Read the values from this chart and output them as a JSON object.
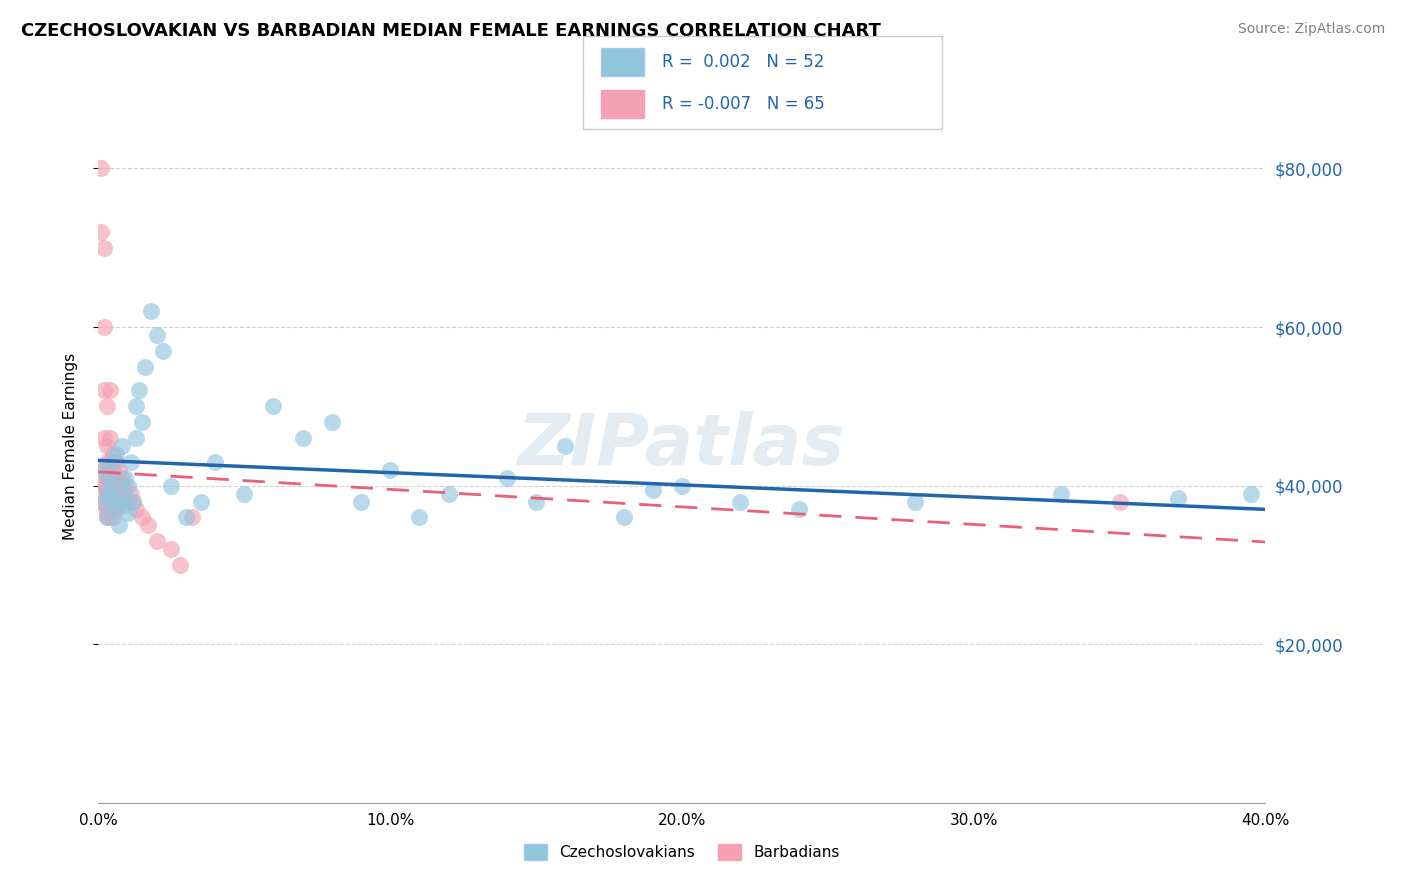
{
  "title": "CZECHOSLOVAKIAN VS BARBADIAN MEDIAN FEMALE EARNINGS CORRELATION CHART",
  "source": "Source: ZipAtlas.com",
  "ylabel": "Median Female Earnings",
  "xlim": [
    0.0,
    0.4
  ],
  "ylim": [
    0,
    90000
  ],
  "yticks": [
    20000,
    40000,
    60000,
    80000
  ],
  "ytick_labels": [
    "$20,000",
    "$40,000",
    "$60,000",
    "$80,000"
  ],
  "xticks": [
    0.0,
    0.1,
    0.2,
    0.3,
    0.4
  ],
  "xtick_labels": [
    "0.0%",
    "10.0%",
    "20.0%",
    "30.0%",
    "40.0%"
  ],
  "legend_labels": [
    "Czechoslovakians",
    "Barbadians"
  ],
  "r_czecho": 0.002,
  "n_czecho": 52,
  "r_barb": -0.007,
  "n_barb": 65,
  "blue_color": "#92c5de",
  "pink_color": "#f4a0b5",
  "blue_line_color": "#2166ac",
  "pink_line_color": "#e8607a",
  "watermark": "ZIPatlas",
  "czecho_x": [
    0.001,
    0.002,
    0.003,
    0.003,
    0.004,
    0.004,
    0.005,
    0.005,
    0.006,
    0.006,
    0.007,
    0.007,
    0.008,
    0.008,
    0.009,
    0.009,
    0.01,
    0.01,
    0.011,
    0.012,
    0.013,
    0.013,
    0.014,
    0.015,
    0.016,
    0.018,
    0.02,
    0.022,
    0.025,
    0.03,
    0.035,
    0.04,
    0.05,
    0.06,
    0.07,
    0.08,
    0.09,
    0.1,
    0.11,
    0.12,
    0.14,
    0.15,
    0.16,
    0.18,
    0.19,
    0.2,
    0.22,
    0.24,
    0.28,
    0.33,
    0.37,
    0.395
  ],
  "czecho_y": [
    42000,
    38000,
    39500,
    36000,
    41000,
    38500,
    43000,
    40000,
    44000,
    37000,
    38000,
    35000,
    45000,
    39000,
    41000,
    37500,
    40000,
    36500,
    43000,
    38000,
    50000,
    46000,
    52000,
    48000,
    55000,
    62000,
    59000,
    57000,
    40000,
    36000,
    38000,
    43000,
    39000,
    50000,
    46000,
    48000,
    38000,
    42000,
    36000,
    39000,
    41000,
    38000,
    45000,
    36000,
    39500,
    40000,
    38000,
    37000,
    38000,
    39000,
    38500,
    39000
  ],
  "barb_x": [
    0.001,
    0.001,
    0.001,
    0.001,
    0.002,
    0.002,
    0.002,
    0.002,
    0.002,
    0.002,
    0.003,
    0.003,
    0.003,
    0.003,
    0.003,
    0.003,
    0.003,
    0.003,
    0.003,
    0.003,
    0.003,
    0.004,
    0.004,
    0.004,
    0.004,
    0.004,
    0.004,
    0.004,
    0.004,
    0.004,
    0.005,
    0.005,
    0.005,
    0.005,
    0.005,
    0.005,
    0.005,
    0.005,
    0.005,
    0.006,
    0.006,
    0.006,
    0.006,
    0.006,
    0.006,
    0.007,
    0.007,
    0.007,
    0.007,
    0.008,
    0.008,
    0.008,
    0.009,
    0.009,
    0.01,
    0.011,
    0.012,
    0.013,
    0.015,
    0.017,
    0.02,
    0.025,
    0.028,
    0.032,
    0.35
  ],
  "barb_y": [
    80000,
    72000,
    40000,
    38000,
    70000,
    60000,
    52000,
    46000,
    42000,
    40000,
    50000,
    45000,
    43000,
    41000,
    40000,
    39000,
    38000,
    37500,
    37000,
    36500,
    36000,
    52000,
    46000,
    43000,
    41000,
    40000,
    38500,
    38000,
    37000,
    36000,
    44000,
    42000,
    41000,
    40000,
    39000,
    38000,
    37500,
    37000,
    36000,
    43000,
    41000,
    40000,
    39000,
    38000,
    37000,
    42000,
    40000,
    39000,
    38000,
    41000,
    40000,
    38500,
    40000,
    39000,
    38000,
    39000,
    38000,
    37000,
    36000,
    35000,
    33000,
    32000,
    30000,
    36000,
    38000
  ]
}
